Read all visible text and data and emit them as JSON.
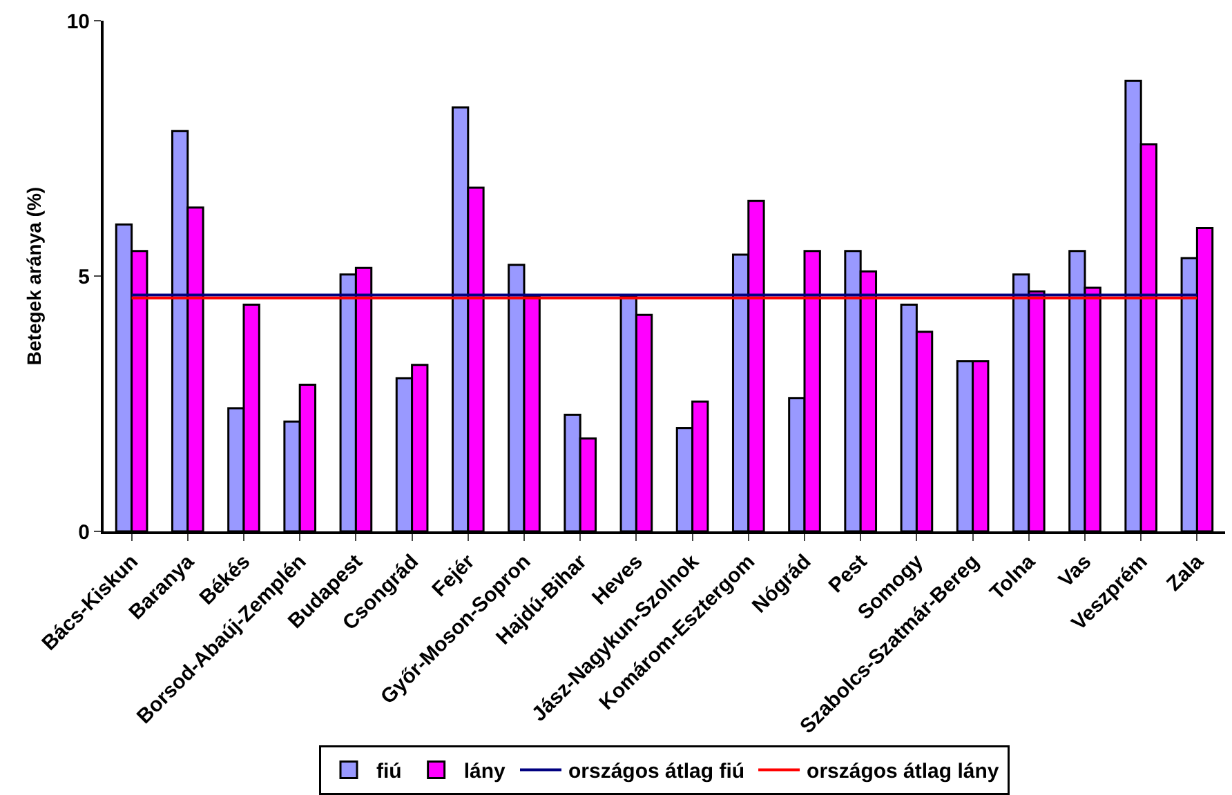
{
  "chart_data": {
    "type": "bar",
    "ylabel": "Betegek aránya (%)",
    "categories": [
      "Bács-Kiskun",
      "Baranya",
      "Békés",
      "Borsod-Abaúj-Zemplén",
      "Budapest",
      "Csongrád",
      "Fejér",
      "Győr-Moson-Sopron",
      "Hajdú-Bihar",
      "Heves",
      "Jász-Nagykun-Szolnok",
      "Komárom-Esztergom",
      "Nógrád",
      "Pest",
      "Somogy",
      "Szabolcs-Szatmár-Bereg",
      "Tolna",
      "Vas",
      "Veszprém",
      "Zala"
    ],
    "series": [
      {
        "name": "fiú",
        "color": "#9999ff",
        "values": [
          6.01,
          7.84,
          2.41,
          2.15,
          5.03,
          3.0,
          8.3,
          5.22,
          2.28,
          4.59,
          2.02,
          5.42,
          2.61,
          5.49,
          4.44,
          3.33,
          5.03,
          5.49,
          8.82,
          5.35
        ]
      },
      {
        "name": "lány",
        "color": "#ff00ff",
        "values": [
          5.49,
          6.34,
          4.44,
          2.87,
          5.16,
          3.26,
          6.73,
          4.59,
          1.82,
          4.24,
          2.54,
          6.47,
          5.49,
          5.09,
          3.91,
          3.33,
          4.7,
          4.77,
          7.58,
          5.94
        ]
      }
    ],
    "ref_lines": [
      {
        "axis": "y",
        "value": 4.63,
        "label": "országos átlag fiú",
        "color": "#000080",
        "line_style": "solid"
      },
      {
        "axis": "y",
        "value": 4.57,
        "label": "országos átlag lány",
        "color": "#ff0000",
        "line_style": "solid"
      }
    ],
    "ylim": [
      0,
      10
    ],
    "yticks": [
      0,
      5,
      10
    ],
    "legend": "bottom"
  }
}
